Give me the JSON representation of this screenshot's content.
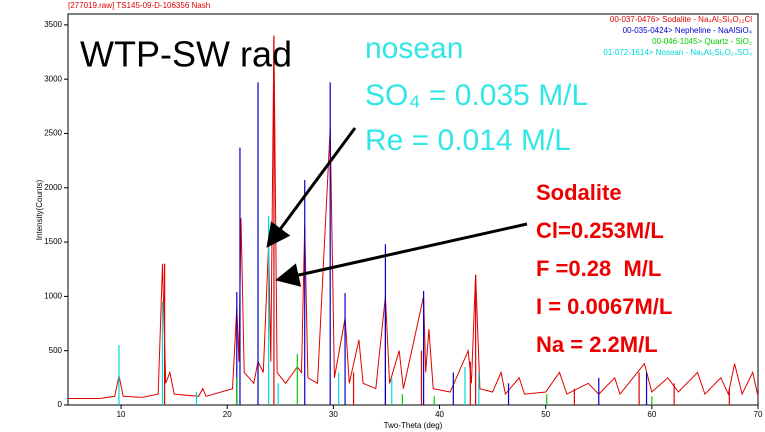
{
  "chart_data": {
    "type": "line",
    "x_label": "Two-Theta (deg)",
    "y_label": "Intensity(Counts)",
    "xlim": [
      5,
      70
    ],
    "ylim": [
      0,
      3600
    ],
    "xticks": [
      10,
      20,
      30,
      40,
      50,
      60,
      70
    ],
    "yticks": [
      0,
      500,
      1000,
      1500,
      2000,
      2500,
      3000,
      3500
    ],
    "series": [
      {
        "name": "[277019.raw] TS145-09-D-106356 Nash",
        "style": "line",
        "color": "#e00000",
        "x": [
          5,
          8,
          9.4,
          9.8,
          10.2,
          12,
          13.5,
          13.9,
          14.2,
          14.6,
          15,
          17.3,
          17.7,
          18,
          20.5,
          20.9,
          21.1,
          21.3,
          21.6,
          22.5,
          22.9,
          23.4,
          23.9,
          24.1,
          24.4,
          24.7,
          25.5,
          26.6,
          27,
          27.3,
          27.6,
          28.5,
          29.7,
          30.1,
          31.1,
          31.5,
          32.4,
          32.8,
          34,
          34.9,
          35.3,
          36.2,
          36.6,
          38.5,
          38.7,
          39,
          39.4,
          41,
          42.7,
          43,
          43.4,
          43.8,
          45,
          45.8,
          46.2,
          47.5,
          48,
          50,
          51.3,
          52,
          54,
          55,
          56.5,
          57,
          59.3,
          60,
          61.5,
          62.5,
          64.3,
          65,
          66.5,
          67.2,
          67.8,
          68.5,
          69.5,
          70
        ],
        "values": [
          60,
          60,
          80,
          270,
          80,
          70,
          100,
          1300,
          200,
          300,
          100,
          80,
          150,
          80,
          150,
          900,
          400,
          1720,
          300,
          200,
          400,
          300,
          1480,
          400,
          3400,
          300,
          200,
          350,
          300,
          1650,
          250,
          200,
          2550,
          250,
          800,
          200,
          600,
          200,
          150,
          1000,
          200,
          500,
          150,
          1000,
          300,
          700,
          150,
          120,
          500,
          200,
          1200,
          150,
          120,
          300,
          100,
          250,
          100,
          120,
          300,
          100,
          200,
          100,
          250,
          100,
          380,
          120,
          250,
          120,
          300,
          100,
          250,
          100,
          380,
          100,
          300,
          80
        ]
      },
      {
        "name": "00-037-0476> Sodalite - Na₄Al₃Si₃O₁₂Cl",
        "style": "stick",
        "color": "#e00000",
        "x": [
          14.1,
          24.4,
          31.9,
          34.9,
          38.3,
          42.9,
          43.4,
          52.7,
          58.8,
          62.1,
          67.3
        ],
        "values": [
          1300,
          3400,
          300,
          900,
          500,
          400,
          1200,
          150,
          300,
          200,
          150
        ]
      },
      {
        "name": "00-035-0424> Nepheline - NaAlSiO₄",
        "style": "stick",
        "color": "#0000cc",
        "x": [
          20.9,
          21.2,
          22.9,
          27.3,
          29.7,
          31.1,
          34.9,
          38.5,
          41.3,
          46.5,
          55,
          59.5
        ],
        "values": [
          1040,
          2370,
          2970,
          2070,
          2970,
          1030,
          1480,
          1050,
          300,
          200,
          250,
          300
        ]
      },
      {
        "name": "00-046-1045> Quartz - SiO₂",
        "style": "stick",
        "color": "#00cc00",
        "x": [
          20.9,
          26.6,
          36.5,
          39.5,
          50.1,
          60
        ],
        "values": [
          250,
          470,
          100,
          80,
          100,
          80
        ]
      },
      {
        "name": "01-072-1614> Nosean - Na₈Al₆Si₆O₂₄SO₄",
        "style": "stick",
        "color": "#00d8d8",
        "x": [
          9.8,
          13.9,
          17.1,
          23.9,
          24.8,
          30.5,
          35.5,
          42.4,
          43.7
        ],
        "values": [
          550,
          950,
          120,
          1740,
          200,
          300,
          250,
          350,
          300
        ]
      }
    ],
    "annotations": [
      {
        "text": "WTP-SW rad",
        "color": "#000000"
      },
      {
        "text": "nosean",
        "color": "#33e6e6"
      },
      {
        "text": "SO₄ = 0.035 M/L",
        "color": "#33e6e6"
      },
      {
        "text": "Re = 0.014 M/L",
        "color": "#33e6e6"
      },
      {
        "text": "Sodalite",
        "color": "#ee0000"
      },
      {
        "text": "Cl=0.253M/L",
        "color": "#ee0000"
      },
      {
        "text": "F =0.28  M/L",
        "color": "#ee0000"
      },
      {
        "text": "I = 0.0067M/L",
        "color": "#ee0000"
      },
      {
        "text": "Na = 2.2M/L",
        "color": "#ee0000"
      }
    ]
  }
}
